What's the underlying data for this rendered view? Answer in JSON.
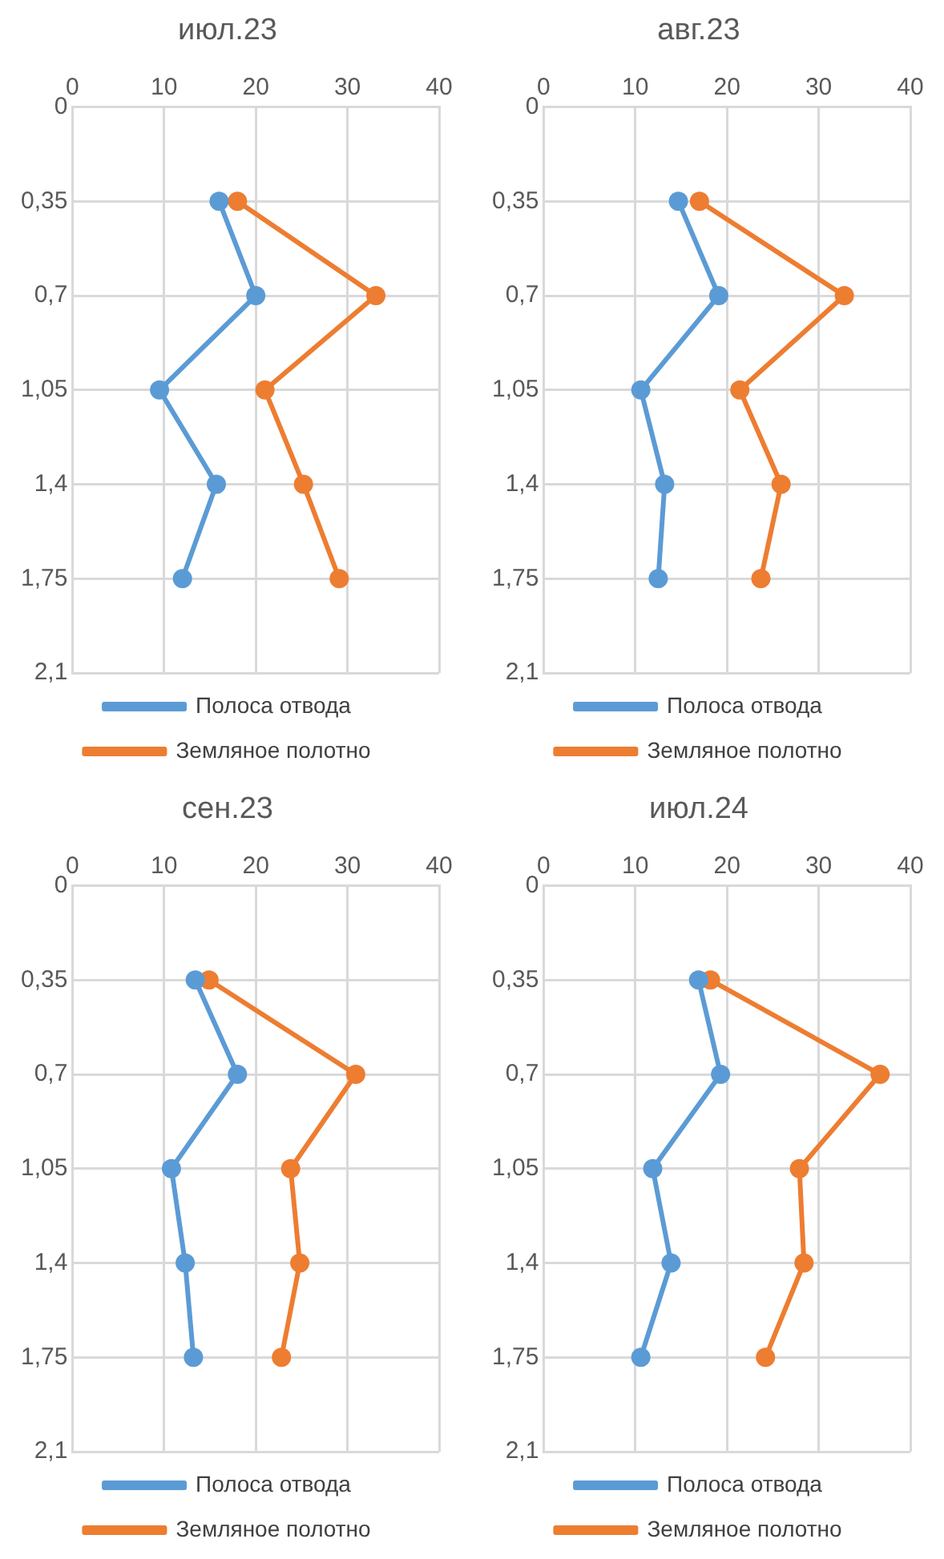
{
  "chart_data": [
    {
      "type": "line",
      "title": "июл.23",
      "orientation": "horizontal",
      "x": [
        0.35,
        0.7,
        1.05,
        1.4,
        1.75
      ],
      "xlim": [
        0,
        40
      ],
      "xticks": [
        0,
        10,
        20,
        30,
        40
      ],
      "ylim": [
        2.1,
        0
      ],
      "yticks": [
        {
          "value": 0,
          "label": "0"
        },
        {
          "value": 0.35,
          "label": "0,35"
        },
        {
          "value": 0.7,
          "label": "0,7"
        },
        {
          "value": 1.05,
          "label": "1,05"
        },
        {
          "value": 1.4,
          "label": "1,4"
        },
        {
          "value": 1.75,
          "label": "1,75"
        },
        {
          "value": 2.1,
          "label": "2,1"
        }
      ],
      "grid": true,
      "legend": "bottom",
      "marker": "circle",
      "series": [
        {
          "name": "Полоса отвода",
          "color": "#5b9bd5",
          "values": [
            16,
            20,
            9.5,
            15.7,
            12
          ]
        },
        {
          "name": "Земляное полотно",
          "color": "#ed7d31",
          "values": [
            18,
            33.1,
            21,
            25.2,
            29.1
          ]
        }
      ]
    },
    {
      "type": "line",
      "title": "авг.23",
      "orientation": "horizontal",
      "x": [
        0.35,
        0.7,
        1.05,
        1.4,
        1.75
      ],
      "xlim": [
        0,
        40
      ],
      "xticks": [
        0,
        10,
        20,
        30,
        40
      ],
      "ylim": [
        2.1,
        0
      ],
      "yticks": [
        {
          "value": 0,
          "label": "0"
        },
        {
          "value": 0.35,
          "label": "0,35"
        },
        {
          "value": 0.7,
          "label": "0,7"
        },
        {
          "value": 1.05,
          "label": "1,05"
        },
        {
          "value": 1.4,
          "label": "1,4"
        },
        {
          "value": 1.75,
          "label": "1,75"
        },
        {
          "value": 2.1,
          "label": "2,1"
        }
      ],
      "grid": true,
      "legend": "bottom",
      "marker": "circle",
      "series": [
        {
          "name": "Полоса отвода",
          "color": "#5b9bd5",
          "values": [
            14.7,
            19.1,
            10.6,
            13.2,
            12.5
          ]
        },
        {
          "name": "Земляное полотно",
          "color": "#ed7d31",
          "values": [
            17,
            32.8,
            21.4,
            25.9,
            23.7
          ]
        }
      ]
    },
    {
      "type": "line",
      "title": "сен.23",
      "orientation": "horizontal",
      "x": [
        0.35,
        0.7,
        1.05,
        1.4,
        1.75
      ],
      "xlim": [
        0,
        40
      ],
      "xticks": [
        0,
        10,
        20,
        30,
        40
      ],
      "ylim": [
        2.1,
        0
      ],
      "yticks": [
        {
          "value": 0,
          "label": "0"
        },
        {
          "value": 0.35,
          "label": "0,35"
        },
        {
          "value": 0.7,
          "label": "0,7"
        },
        {
          "value": 1.05,
          "label": "1,05"
        },
        {
          "value": 1.4,
          "label": "1,4"
        },
        {
          "value": 1.75,
          "label": "1,75"
        },
        {
          "value": 2.1,
          "label": "2,1"
        }
      ],
      "grid": true,
      "legend": "bottom",
      "marker": "circle",
      "series": [
        {
          "name": "Полоса отвода",
          "color": "#5b9bd5",
          "values": [
            13.4,
            18,
            10.8,
            12.3,
            13.2
          ]
        },
        {
          "name": "Земляное полотно",
          "color": "#ed7d31",
          "values": [
            14.9,
            30.9,
            23.8,
            24.8,
            22.8
          ]
        }
      ]
    },
    {
      "type": "line",
      "title": "июл.24",
      "orientation": "horizontal",
      "x": [
        0.35,
        0.7,
        1.05,
        1.4,
        1.75
      ],
      "xlim": [
        0,
        40
      ],
      "xticks": [
        0,
        10,
        20,
        30,
        40
      ],
      "ylim": [
        2.1,
        0
      ],
      "yticks": [
        {
          "value": 0,
          "label": "0"
        },
        {
          "value": 0.35,
          "label": "0,35"
        },
        {
          "value": 0.7,
          "label": "0,7"
        },
        {
          "value": 1.05,
          "label": "1,05"
        },
        {
          "value": 1.4,
          "label": "1,4"
        },
        {
          "value": 1.75,
          "label": "1,75"
        },
        {
          "value": 2.1,
          "label": "2,1"
        }
      ],
      "grid": true,
      "legend": "bottom",
      "marker": "circle",
      "series": [
        {
          "name": "Полоса отвода",
          "color": "#5b9bd5",
          "values": [
            16.9,
            19.3,
            11.9,
            13.9,
            10.6
          ]
        },
        {
          "name": "Земляное полотно",
          "color": "#ed7d31",
          "values": [
            18.2,
            36.7,
            27.9,
            28.4,
            24.2
          ]
        }
      ]
    }
  ]
}
